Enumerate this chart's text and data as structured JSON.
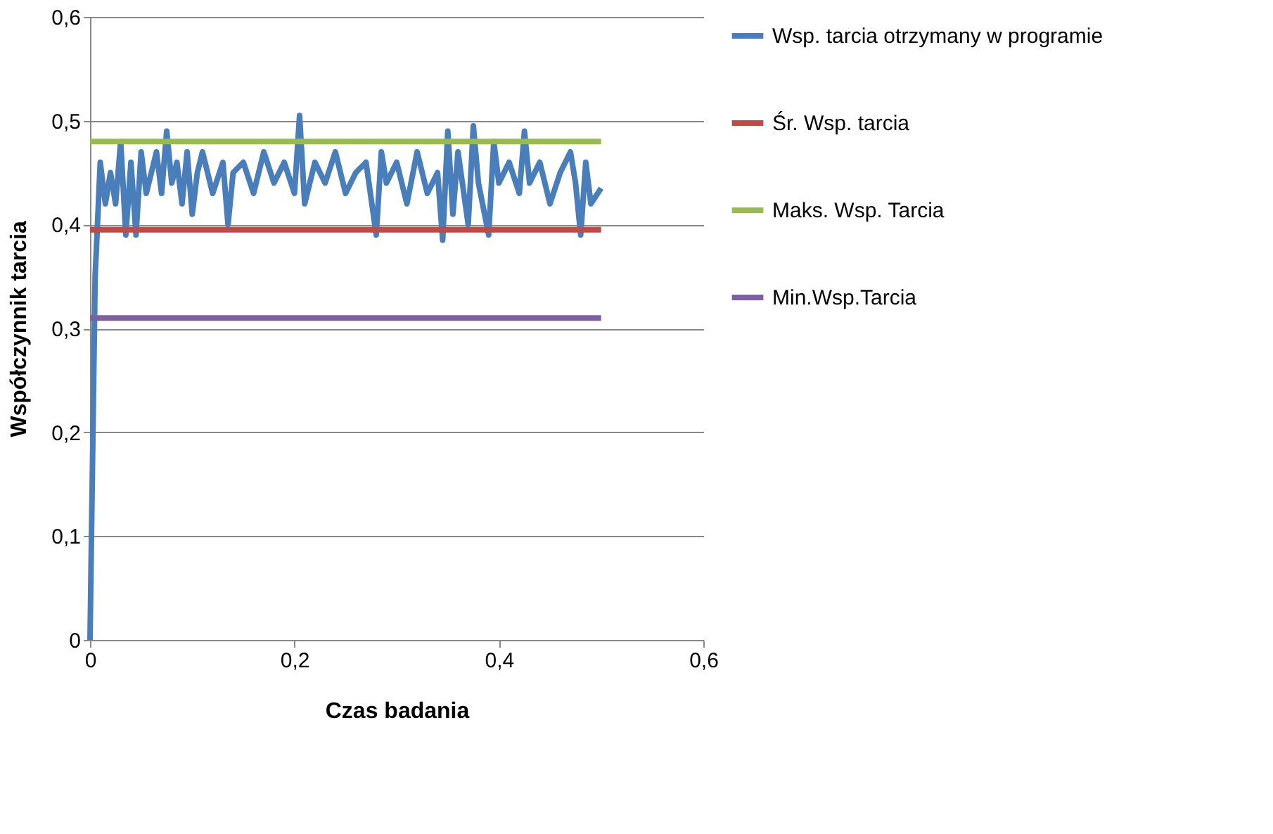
{
  "chart_data": {
    "type": "line",
    "xlabel": "Czas badania",
    "ylabel": "Współczynnik tarcia",
    "xlim": [
      0,
      0.6
    ],
    "xticks": [
      0,
      {
        "value": 0.2,
        "label": "0,2"
      },
      {
        "value": 0.4,
        "label": "0,4"
      },
      {
        "value": 0.6,
        "label": "0,6"
      }
    ],
    "ylim": [
      0,
      0.6
    ],
    "yticks": [
      0,
      {
        "value": 0.1,
        "label": "0,1"
      },
      {
        "value": 0.2,
        "label": "0,2"
      },
      {
        "value": 0.3,
        "label": "0,3"
      },
      {
        "value": 0.4,
        "label": "0,4"
      },
      {
        "value": 0.5,
        "label": "0,5"
      },
      {
        "value": 0.6,
        "label": "0,6"
      }
    ],
    "grid": "y",
    "legend": "right",
    "marker": "none",
    "line_style": "solid",
    "series": [
      {
        "name": "Wsp. tarcia otrzymany w programie",
        "color": "#4a7ebb",
        "x": [
          0,
          0.005,
          0.01,
          0.015,
          0.02,
          0.025,
          0.03,
          0.035,
          0.04,
          0.045,
          0.05,
          0.055,
          0.06,
          0.065,
          0.07,
          0.075,
          0.08,
          0.085,
          0.09,
          0.095,
          0.1,
          0.105,
          0.11,
          0.12,
          0.13,
          0.135,
          0.14,
          0.15,
          0.16,
          0.17,
          0.18,
          0.19,
          0.2,
          0.205,
          0.21,
          0.22,
          0.23,
          0.24,
          0.25,
          0.26,
          0.27,
          0.28,
          0.285,
          0.29,
          0.3,
          0.31,
          0.32,
          0.33,
          0.34,
          0.345,
          0.35,
          0.355,
          0.36,
          0.37,
          0.375,
          0.38,
          0.39,
          0.395,
          0.4,
          0.41,
          0.42,
          0.425,
          0.43,
          0.44,
          0.45,
          0.46,
          0.47,
          0.475,
          0.48,
          0.485,
          0.49,
          0.5
        ],
        "values": [
          0,
          0.35,
          0.46,
          0.42,
          0.45,
          0.42,
          0.48,
          0.39,
          0.46,
          0.39,
          0.47,
          0.43,
          0.45,
          0.47,
          0.43,
          0.49,
          0.44,
          0.46,
          0.42,
          0.47,
          0.41,
          0.45,
          0.47,
          0.43,
          0.46,
          0.4,
          0.45,
          0.46,
          0.43,
          0.47,
          0.44,
          0.46,
          0.43,
          0.505,
          0.42,
          0.46,
          0.44,
          0.47,
          0.43,
          0.45,
          0.46,
          0.39,
          0.47,
          0.44,
          0.46,
          0.42,
          0.47,
          0.43,
          0.45,
          0.385,
          0.49,
          0.41,
          0.47,
          0.4,
          0.495,
          0.44,
          0.39,
          0.48,
          0.44,
          0.46,
          0.43,
          0.49,
          0.44,
          0.46,
          0.42,
          0.45,
          0.47,
          0.44,
          0.39,
          0.46,
          0.42,
          0.435
        ]
      },
      {
        "name": "Śr. Wsp. tarcia",
        "color": "#be4b48",
        "x": [
          0,
          0.5
        ],
        "values": [
          0.395,
          0.395
        ]
      },
      {
        "name": "Maks. Wsp. Tarcia",
        "color": "#98b954",
        "x": [
          0,
          0.5
        ],
        "values": [
          0.48,
          0.48
        ]
      },
      {
        "name": "Min.Wsp.Tarcia",
        "color": "#7d60a0",
        "x": [
          0,
          0.5
        ],
        "values": [
          0.31,
          0.31
        ]
      }
    ]
  }
}
